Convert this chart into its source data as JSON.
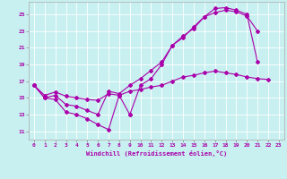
{
  "xlabel": "Windchill (Refroidissement éolien,°C)",
  "background_color": "#c8f0f0",
  "line_color": "#aa00aa",
  "grid_color": "#ffffff",
  "xlim": [
    -0.5,
    23.5
  ],
  "ylim": [
    10.0,
    26.5
  ],
  "yticks": [
    11,
    13,
    15,
    17,
    19,
    21,
    23,
    25
  ],
  "xticks": [
    0,
    1,
    2,
    3,
    4,
    5,
    6,
    7,
    8,
    9,
    10,
    11,
    12,
    13,
    14,
    15,
    16,
    17,
    18,
    19,
    20,
    21,
    22,
    23
  ],
  "line1_x": [
    0,
    1,
    2,
    3,
    4,
    5,
    6,
    7,
    8,
    9,
    10,
    11,
    12,
    13,
    14,
    15,
    16,
    17,
    18,
    19,
    20,
    21,
    22,
    23
  ],
  "line1_y": [
    16.5,
    15.0,
    14.8,
    13.3,
    13.0,
    12.5,
    11.8,
    11.2,
    15.3,
    13.0,
    null,
    null,
    null,
    null,
    null,
    null,
    null,
    null,
    null,
    null,
    null,
    null,
    null,
    null
  ],
  "line2_x": [
    0,
    1,
    2,
    3,
    4,
    5,
    6,
    7,
    8,
    9,
    10,
    11,
    12,
    13,
    14,
    15,
    16,
    17,
    18,
    19,
    20,
    21,
    22,
    23
  ],
  "line2_y": [
    16.5,
    15.0,
    15.3,
    14.2,
    14.0,
    13.5,
    13.0,
    15.8,
    15.5,
    16.5,
    17.3,
    18.3,
    19.3,
    21.3,
    22.2,
    23.5,
    24.7,
    25.2,
    25.5,
    25.3,
    24.8,
    23.0,
    null,
    null
  ],
  "line3_x": [
    0,
    1,
    2,
    3,
    4,
    5,
    6,
    7,
    8,
    9,
    10,
    11,
    12,
    13,
    14,
    15,
    16,
    17,
    18,
    19,
    20,
    21,
    22,
    23
  ],
  "line3_y": [
    16.5,
    15.3,
    15.7,
    15.2,
    15.0,
    14.8,
    14.7,
    15.5,
    15.3,
    15.8,
    16.0,
    16.3,
    16.5,
    17.0,
    17.5,
    17.7,
    18.0,
    18.2,
    18.0,
    17.8,
    17.5,
    17.3,
    17.2,
    null
  ],
  "line4_x": [
    9,
    10,
    11,
    12,
    13,
    14,
    15,
    16,
    17,
    18,
    19,
    20,
    21
  ],
  "line4_y": [
    13.0,
    16.5,
    17.3,
    19.0,
    21.3,
    22.4,
    23.3,
    24.7,
    25.7,
    25.8,
    25.5,
    25.0,
    19.3
  ]
}
